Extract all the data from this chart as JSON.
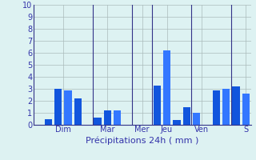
{
  "xlabel": "Précipitations 24h ( mm )",
  "ylim": [
    0,
    10
  ],
  "yticks": [
    0,
    1,
    2,
    3,
    4,
    5,
    6,
    7,
    8,
    9,
    10
  ],
  "bar_values": [
    0.0,
    0.45,
    3.0,
    2.85,
    2.2,
    0.0,
    0.6,
    1.2,
    1.2,
    0.0,
    0.0,
    0.0,
    3.3,
    6.2,
    0.4,
    1.5,
    1.0,
    0.0,
    2.9,
    3.0,
    3.2,
    2.6
  ],
  "bar_colors": [
    "#1155dd",
    "#1155dd",
    "#1155dd",
    "#3377ff",
    "#1155dd",
    "#1155dd",
    "#1155dd",
    "#1155dd",
    "#3377ff",
    "#1155dd",
    "#1155dd",
    "#1155dd",
    "#1155dd",
    "#3377ff",
    "#1155dd",
    "#1155dd",
    "#3377ff",
    "#1155dd",
    "#1155dd",
    "#3377ff",
    "#1155dd",
    "#3377ff"
  ],
  "day_labels": [
    "Dim",
    "Mar",
    "Mer",
    "Jeu",
    "Ven",
    "S"
  ],
  "day_tick_x": [
    2.5,
    7.0,
    10.5,
    13.0,
    16.5,
    21.0
  ],
  "day_sep_x": [
    5.5,
    9.5,
    11.5,
    15.5,
    19.5
  ],
  "background_color": "#ddf2f2",
  "grid_color": "#aabbbb",
  "axis_color": "#333388",
  "text_color": "#3333aa",
  "bar_width": 0.75,
  "xlabel_fontsize": 8,
  "ytick_fontsize": 7,
  "xtick_fontsize": 7
}
